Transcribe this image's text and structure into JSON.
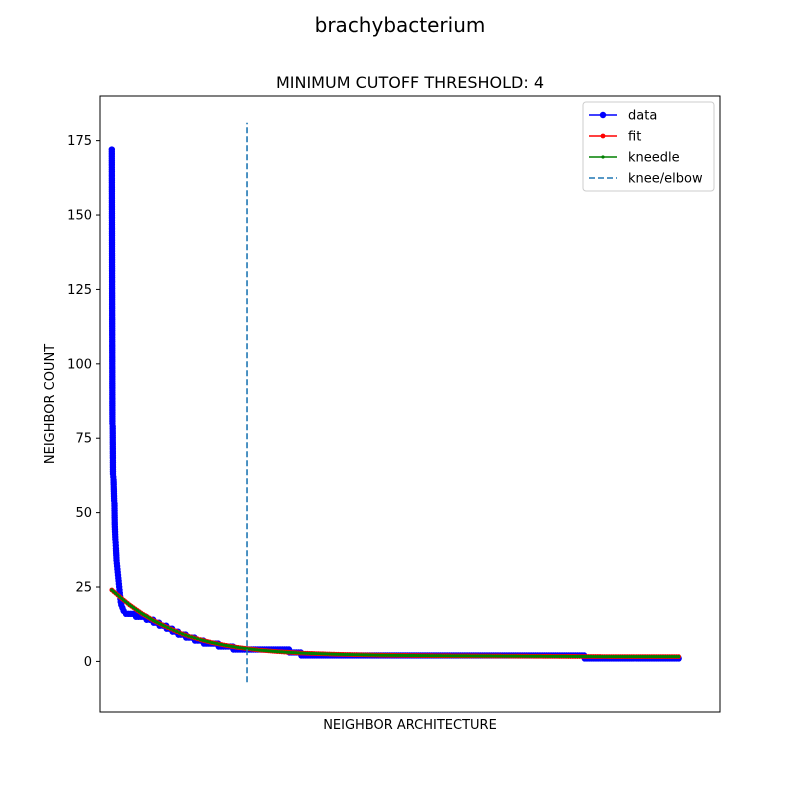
{
  "chart_data": {
    "type": "line",
    "suptitle": "brachybacterium",
    "title": "MINIMUM CUTOFF THRESHOLD: 4",
    "xlabel": "NEIGHBOR ARCHITECTURE",
    "ylabel": "NEIGHBOR COUNT",
    "xlim": [
      -20,
      1030
    ],
    "ylim": [
      -17,
      190
    ],
    "yticks": [
      0,
      25,
      50,
      75,
      100,
      125,
      150,
      175
    ],
    "xticks_visible": false,
    "grid": false,
    "legend_position": "top-right",
    "knee_x": 229,
    "knee_line_y": [
      -7,
      181
    ],
    "series": [
      {
        "name": "data",
        "color": "#0000ff",
        "marker": "circle",
        "points": [
          [
            0,
            172
          ],
          [
            1,
            80
          ],
          [
            1.5,
            79
          ],
          [
            2,
            63
          ],
          [
            2.5,
            62
          ],
          [
            3,
            61
          ],
          [
            4,
            54
          ],
          [
            4.5,
            53
          ],
          [
            5,
            46
          ],
          [
            6,
            41
          ],
          [
            6.5,
            40
          ],
          [
            7,
            38
          ],
          [
            8,
            34
          ],
          [
            9,
            32
          ],
          [
            10,
            30
          ],
          [
            11,
            28
          ],
          [
            12,
            26
          ],
          [
            13,
            24
          ],
          [
            14,
            22
          ],
          [
            15,
            20
          ],
          [
            16,
            19
          ],
          [
            18,
            18
          ],
          [
            20,
            17
          ],
          [
            24,
            16
          ],
          [
            40,
            16
          ],
          [
            41,
            15
          ],
          [
            58,
            15
          ],
          [
            59,
            14
          ],
          [
            70,
            14
          ],
          [
            71,
            13
          ],
          [
            80,
            13
          ],
          [
            81,
            12
          ],
          [
            92,
            12
          ],
          [
            93,
            11
          ],
          [
            102,
            11
          ],
          [
            103,
            10
          ],
          [
            112,
            10
          ],
          [
            113,
            9
          ],
          [
            125,
            9
          ],
          [
            126,
            8
          ],
          [
            140,
            8
          ],
          [
            141,
            7
          ],
          [
            155,
            7
          ],
          [
            156,
            6
          ],
          [
            180,
            6
          ],
          [
            181,
            5
          ],
          [
            205,
            5
          ],
          [
            206,
            4
          ],
          [
            300,
            4
          ],
          [
            301,
            3
          ],
          [
            320,
            3
          ],
          [
            321,
            2
          ],
          [
            800,
            2
          ],
          [
            801,
            1
          ],
          [
            960,
            1
          ]
        ]
      },
      {
        "name": "fit",
        "color": "#ff0000",
        "marker": "dot",
        "points": [
          [
            0,
            24
          ],
          [
            10,
            22.3
          ],
          [
            20,
            20.6
          ],
          [
            30,
            19.0
          ],
          [
            40,
            17.6
          ],
          [
            50,
            16.2
          ],
          [
            60,
            15.0
          ],
          [
            70,
            13.8
          ],
          [
            80,
            12.8
          ],
          [
            90,
            11.8
          ],
          [
            100,
            10.9
          ],
          [
            110,
            10.0
          ],
          [
            120,
            9.2
          ],
          [
            130,
            8.5
          ],
          [
            140,
            7.9
          ],
          [
            150,
            7.3
          ],
          [
            170,
            6.3
          ],
          [
            190,
            5.5
          ],
          [
            210,
            4.8
          ],
          [
            229,
            4.3
          ],
          [
            250,
            3.8
          ],
          [
            280,
            3.3
          ],
          [
            320,
            2.8
          ],
          [
            380,
            2.4
          ],
          [
            450,
            2.1
          ],
          [
            550,
            1.9
          ],
          [
            650,
            1.8
          ],
          [
            750,
            1.7
          ],
          [
            850,
            1.6
          ],
          [
            960,
            1.6
          ]
        ]
      },
      {
        "name": "kneedle",
        "color": "#008000",
        "marker": "dot-small",
        "points": [
          [
            0,
            24
          ],
          [
            10,
            22.3
          ],
          [
            20,
            20.6
          ],
          [
            30,
            19.0
          ],
          [
            40,
            17.6
          ],
          [
            50,
            16.2
          ],
          [
            60,
            15.0
          ],
          [
            70,
            13.8
          ],
          [
            80,
            12.8
          ],
          [
            90,
            11.8
          ],
          [
            100,
            10.9
          ],
          [
            110,
            10.0
          ],
          [
            120,
            9.2
          ],
          [
            130,
            8.5
          ],
          [
            140,
            7.9
          ],
          [
            150,
            7.3
          ],
          [
            170,
            6.3
          ],
          [
            190,
            5.5
          ],
          [
            210,
            4.8
          ],
          [
            229,
            4.3
          ],
          [
            250,
            3.8
          ],
          [
            280,
            3.3
          ],
          [
            320,
            2.8
          ],
          [
            380,
            2.4
          ],
          [
            450,
            2.1
          ],
          [
            550,
            1.9
          ],
          [
            650,
            1.8
          ],
          [
            750,
            1.7
          ],
          [
            850,
            1.6
          ],
          [
            960,
            1.6
          ]
        ]
      },
      {
        "name": "knee/elbow",
        "color": "#1f77b4",
        "marker": "dashed-line",
        "points": []
      }
    ]
  }
}
